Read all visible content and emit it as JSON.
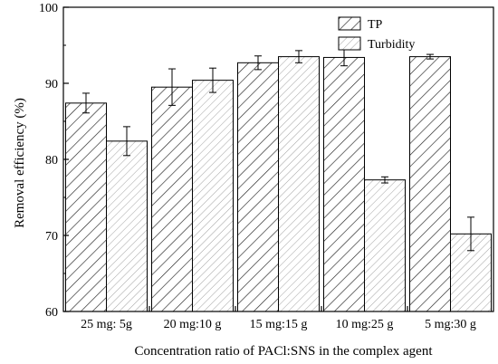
{
  "chart_data": {
    "type": "bar",
    "title": "",
    "xlabel": "Concentration ratio of PACl:SNS in the complex agent",
    "ylabel": "Removal efficiency (%)",
    "ylim": [
      60,
      100
    ],
    "yticks": [
      60,
      70,
      80,
      90,
      100
    ],
    "grid": false,
    "legend_position": "top-right",
    "categories": [
      "25 mg: 5g",
      "20 mg:10 g",
      "15 mg:15 g",
      "10 mg:25 g",
      "5 mg:30 g"
    ],
    "series": [
      {
        "name": "TP",
        "pattern": "dense-diagonal-hatch",
        "values": [
          87.4,
          89.5,
          92.7,
          93.4,
          93.5
        ],
        "errors": [
          1.3,
          2.4,
          0.9,
          1.1,
          0.3
        ]
      },
      {
        "name": "Turbidity",
        "pattern": "light-diagonal-hatch",
        "values": [
          82.4,
          90.4,
          93.5,
          77.3,
          70.2
        ],
        "errors": [
          1.9,
          1.6,
          0.8,
          0.4,
          2.2
        ]
      }
    ]
  }
}
